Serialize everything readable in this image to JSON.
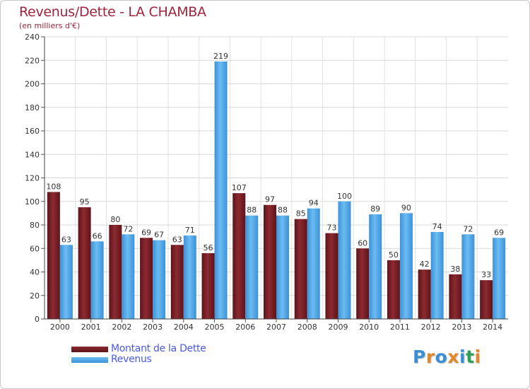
{
  "colors": {
    "dette": "#7a1f25",
    "dette_light": "#a5353d",
    "revenus": "#4aa5e6",
    "revenus_light": "#6cbcf2",
    "title": "#a0243a",
    "legend_text": "#4a5be0"
  },
  "chart_data": {
    "type": "bar",
    "title": "Revenus/Dette - LA CHAMBA",
    "subtitle": "(en milliers d'€)",
    "categories": [
      "2000",
      "2001",
      "2002",
      "2003",
      "2004",
      "2005",
      "2006",
      "2007",
      "2008",
      "2009",
      "2010",
      "2011",
      "2012",
      "2013",
      "2014"
    ],
    "series": [
      {
        "name": "Montant de la Dette",
        "values": [
          108,
          95,
          80,
          69,
          63,
          56,
          107,
          97,
          85,
          73,
          60,
          50,
          42,
          38,
          33
        ]
      },
      {
        "name": "Revenus",
        "values": [
          63,
          66,
          72,
          67,
          71,
          219,
          88,
          88,
          94,
          100,
          89,
          90,
          74,
          72,
          69
        ]
      }
    ],
    "ylim": [
      0,
      240
    ],
    "yticks": [
      0,
      20,
      40,
      60,
      80,
      100,
      120,
      140,
      160,
      180,
      200,
      220,
      240
    ],
    "grid": true,
    "legend_position": "bottom-left"
  },
  "logo": {
    "letters": [
      "P",
      "r",
      "o",
      "x",
      "i",
      "t",
      "i"
    ],
    "colors": [
      "#3c8fd6",
      "#e2872a",
      "#3c8fd6",
      "#e2872a",
      "#3c8fd6",
      "#2f9e56",
      "#e2872a"
    ]
  }
}
